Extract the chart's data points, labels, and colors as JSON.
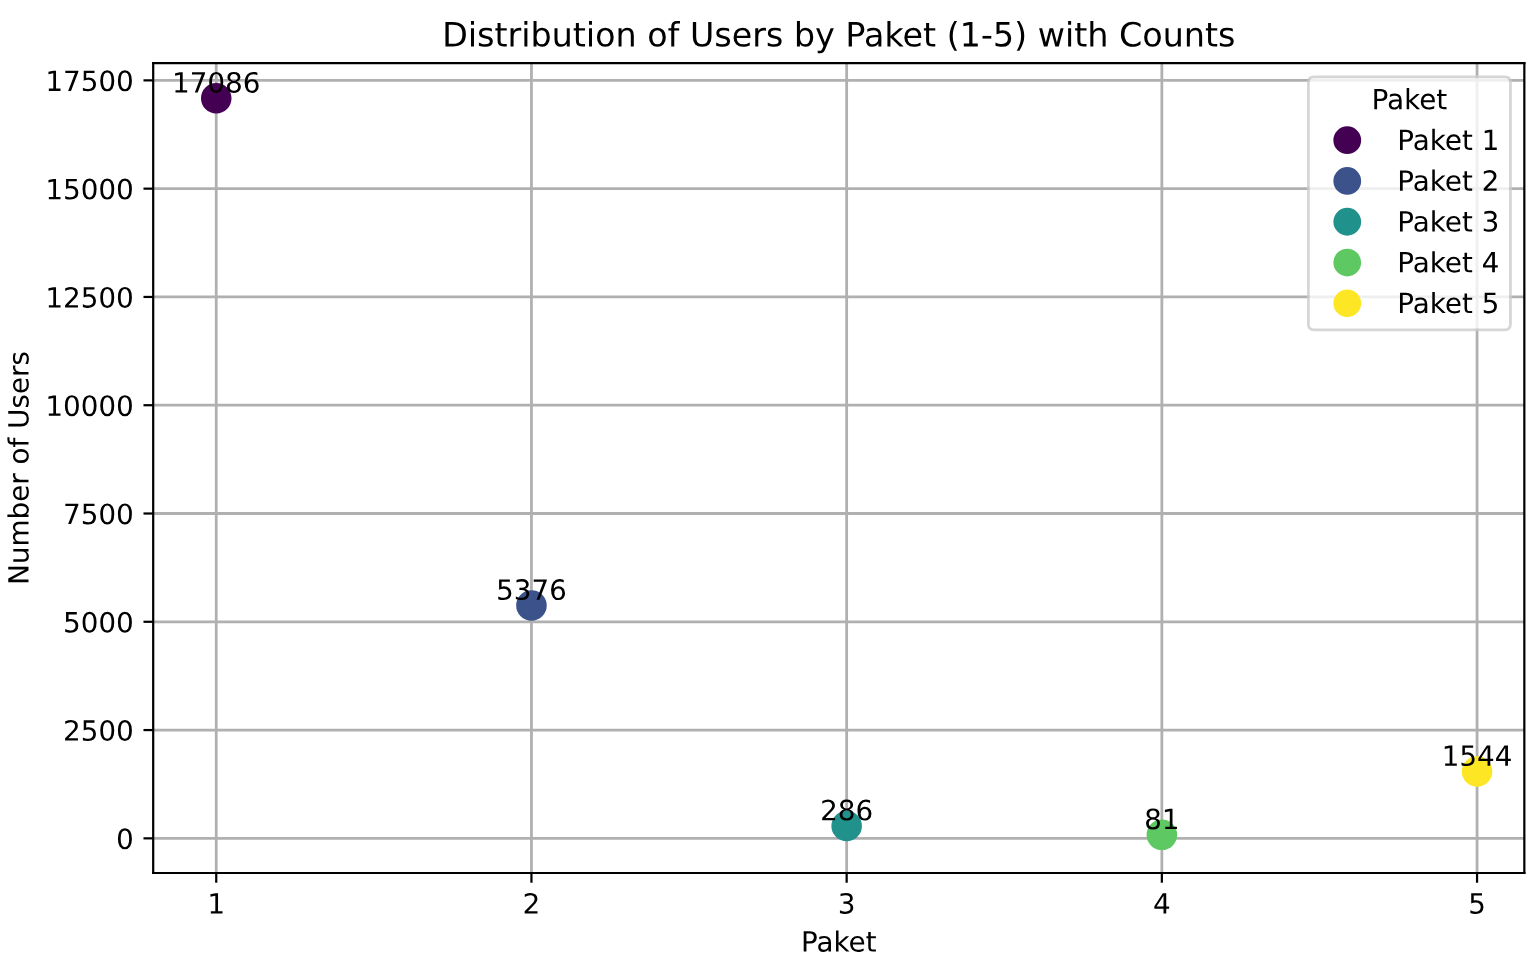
{
  "chart_data": {
    "type": "scatter",
    "title": "Distribution of Users by Paket (1-5) with Counts",
    "xlabel": "Paket",
    "ylabel": "Number of Users",
    "legend_title": "Paket",
    "series": [
      {
        "name": "Paket 1",
        "color": "#440154",
        "x": [
          1
        ],
        "values": [
          17086
        ]
      },
      {
        "name": "Paket 2",
        "color": "#3b528b",
        "x": [
          2
        ],
        "values": [
          5376
        ]
      },
      {
        "name": "Paket 3",
        "color": "#21918c",
        "x": [
          3
        ],
        "values": [
          286
        ]
      },
      {
        "name": "Paket 4",
        "color": "#5ec962",
        "x": [
          4
        ],
        "values": [
          81
        ]
      },
      {
        "name": "Paket 5",
        "color": "#fde725",
        "x": [
          5
        ],
        "values": [
          1544
        ]
      }
    ],
    "xlim": [
      0.8,
      5.15
    ],
    "xticks": [
      1,
      2,
      3,
      4,
      5
    ],
    "ylim": [
      -800,
      17900
    ],
    "yticks": [
      0,
      2500,
      5000,
      7500,
      10000,
      12500,
      15000,
      17500
    ],
    "grid": true,
    "legend": "top right",
    "marker": "circle",
    "data_labels": true
  }
}
